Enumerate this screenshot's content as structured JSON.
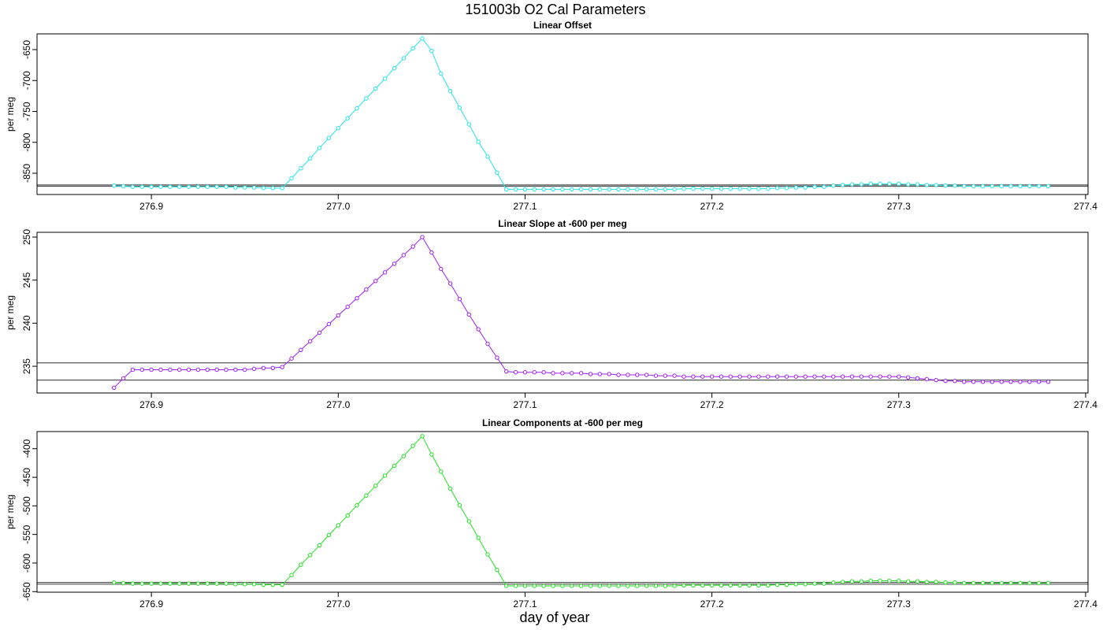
{
  "chart_data": {
    "type": "line",
    "title": "151003b   O2 Cal Parameters",
    "xlabel": "day of year",
    "x": [
      276.88,
      276.885,
      276.89,
      276.895,
      276.9,
      276.905,
      276.91,
      276.915,
      276.92,
      276.925,
      276.93,
      276.935,
      276.94,
      276.945,
      276.95,
      276.955,
      276.96,
      276.965,
      276.97,
      276.975,
      276.98,
      276.985,
      276.99,
      276.995,
      277,
      277.005,
      277.01,
      277.015,
      277.02,
      277.025,
      277.03,
      277.035,
      277.04,
      277.045,
      277.05,
      277.055,
      277.06,
      277.065,
      277.07,
      277.075,
      277.08,
      277.085,
      277.09,
      277.095,
      277.1,
      277.105,
      277.11,
      277.115,
      277.12,
      277.125,
      277.13,
      277.135,
      277.14,
      277.145,
      277.15,
      277.155,
      277.16,
      277.165,
      277.17,
      277.175,
      277.18,
      277.185,
      277.19,
      277.195,
      277.2,
      277.205,
      277.21,
      277.215,
      277.22,
      277.225,
      277.23,
      277.235,
      277.24,
      277.245,
      277.25,
      277.255,
      277.26,
      277.265,
      277.27,
      277.275,
      277.28,
      277.285,
      277.29,
      277.295,
      277.3,
      277.305,
      277.31,
      277.315,
      277.32,
      277.325,
      277.33,
      277.335,
      277.34,
      277.345,
      277.35,
      277.355,
      277.36,
      277.365,
      277.37,
      277.375,
      277.38
    ],
    "xlim": [
      276.8388,
      277.4013
    ],
    "xticks": [
      276.9,
      {
        "value": 277,
        "label": "277.0"
      },
      277.1,
      277.2,
      277.3,
      277.4
    ],
    "panels": [
      {
        "title": "Linear Offset",
        "ylabel": "per meg",
        "color": "#22e4e8",
        "ylim": [
          -884.4,
          -624.5
        ],
        "yticks": [
          -850,
          -800,
          -750,
          -700,
          -650
        ],
        "hlines": [
          -869,
          -871
        ],
        "values": [
          -870,
          -871,
          -872,
          -872,
          -872,
          -872,
          -872,
          -872,
          -872,
          -872,
          -872,
          -872,
          -872,
          -873,
          -873,
          -873,
          -874,
          -874,
          -874,
          -858,
          -842,
          -826,
          -809,
          -793,
          -777,
          -761,
          -745,
          -729,
          -713,
          -697,
          -680,
          -664,
          -648,
          -632,
          -652,
          -689,
          -717,
          -744,
          -771,
          -799,
          -823,
          -849,
          -876,
          -876,
          -876,
          -876,
          -876,
          -876,
          -876,
          -876,
          -876,
          -876,
          -876,
          -876,
          -876,
          -876,
          -876,
          -876,
          -876,
          -876,
          -876,
          -875,
          -875,
          -875,
          -875,
          -875,
          -875,
          -875,
          -875,
          -875,
          -875,
          -874,
          -874,
          -873,
          -873,
          -872,
          -872,
          -870,
          -869,
          -868,
          -868,
          -867,
          -867,
          -867,
          -867,
          -868,
          -868,
          -869,
          -869,
          -870,
          -870,
          -871,
          -871,
          -871,
          -871,
          -871,
          -871,
          -871,
          -871,
          -871,
          -871
        ]
      },
      {
        "title": "Linear Slope at -600 per meg",
        "ylabel": "per meg",
        "color": "#a020f0",
        "ylim": [
          231.9,
          250.55
        ],
        "yticks": [
          235,
          240,
          245,
          250
        ],
        "hlines": [
          235.4,
          233.4
        ],
        "values": [
          232.5,
          233.6,
          234.6,
          234.6,
          234.6,
          234.6,
          234.6,
          234.6,
          234.6,
          234.6,
          234.6,
          234.6,
          234.6,
          234.6,
          234.6,
          234.7,
          234.8,
          234.8,
          234.9,
          235.9,
          236.9,
          237.9,
          238.9,
          239.9,
          240.9,
          241.9,
          242.9,
          243.9,
          244.9,
          245.9,
          246.9,
          247.9,
          248.9,
          250.0,
          248.2,
          246.3,
          244.6,
          242.8,
          241.0,
          239.3,
          237.6,
          236.0,
          234.4,
          234.3,
          234.3,
          234.3,
          234.3,
          234.2,
          234.2,
          234.2,
          234.2,
          234.1,
          234.1,
          234.1,
          234.0,
          234.0,
          234.0,
          234.0,
          233.9,
          233.9,
          233.9,
          233.8,
          233.8,
          233.8,
          233.8,
          233.8,
          233.8,
          233.8,
          233.8,
          233.8,
          233.8,
          233.8,
          233.8,
          233.8,
          233.8,
          233.8,
          233.8,
          233.8,
          233.8,
          233.8,
          233.8,
          233.8,
          233.8,
          233.8,
          233.8,
          233.7,
          233.6,
          233.5,
          233.4,
          233.3,
          233.3,
          233.2,
          233.2,
          233.2,
          233.2,
          233.2,
          233.2,
          233.2,
          233.2,
          233.2,
          233.2
        ]
      },
      {
        "title": "Linear Components at -600 per meg",
        "ylabel": "per meg",
        "color": "#22e022",
        "ylim": [
          -651,
          -370
        ],
        "yticks": [
          -650,
          -600,
          -550,
          -500,
          -450,
          -400
        ],
        "hlines": [
          -634,
          -637
        ],
        "values": [
          -634,
          -635,
          -636,
          -636,
          -636,
          -636,
          -636,
          -636,
          -636,
          -636,
          -636,
          -636,
          -636,
          -637,
          -637,
          -637,
          -638,
          -638,
          -638,
          -621,
          -603,
          -586,
          -569,
          -551,
          -534,
          -517,
          -499,
          -482,
          -465,
          -447,
          -430,
          -413,
          -395,
          -378,
          -410,
          -440,
          -470,
          -499,
          -527,
          -556,
          -585,
          -612,
          -640,
          -640,
          -640,
          -640,
          -640,
          -640,
          -640,
          -640,
          -640,
          -640,
          -640,
          -640,
          -640,
          -640,
          -640,
          -640,
          -640,
          -640,
          -640,
          -639,
          -639,
          -639,
          -639,
          -639,
          -639,
          -639,
          -639,
          -639,
          -639,
          -638,
          -638,
          -637,
          -637,
          -636,
          -636,
          -634,
          -633,
          -632,
          -632,
          -631,
          -631,
          -631,
          -631,
          -632,
          -632,
          -633,
          -633,
          -634,
          -634,
          -635,
          -635,
          -635,
          -635,
          -635,
          -635,
          -635,
          -635,
          -635,
          -635
        ]
      }
    ]
  }
}
